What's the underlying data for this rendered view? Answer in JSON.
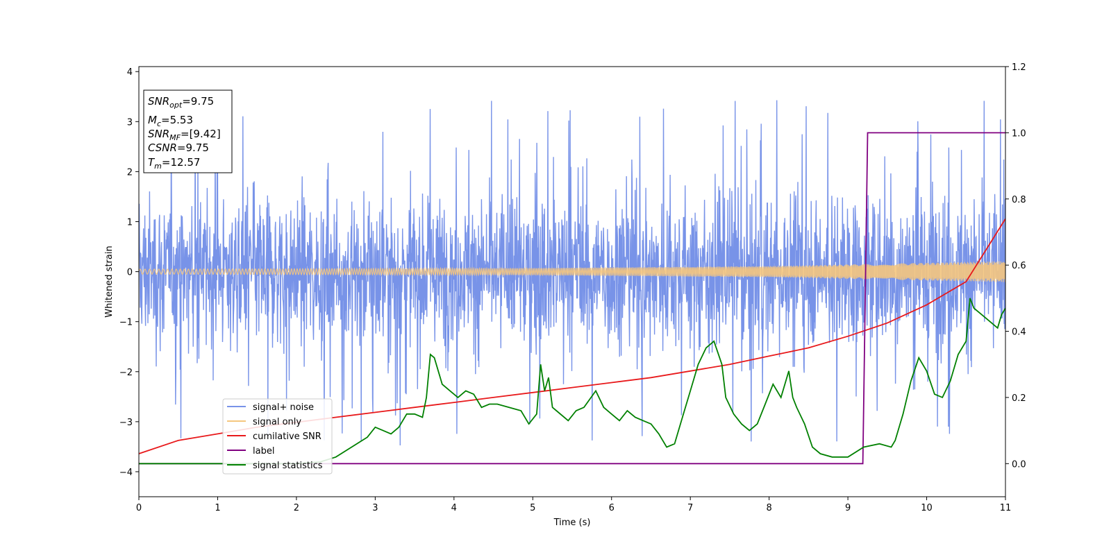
{
  "chart_data": {
    "type": "line",
    "title": "",
    "xlabel": "Time (s)",
    "ylabel": "Whitened strain",
    "y2label": "",
    "xlim": [
      0,
      11
    ],
    "ylim": [
      -4.5,
      4.1
    ],
    "y2lim": [
      -0.1,
      1.2
    ],
    "xticks": [
      "0",
      "1",
      "2",
      "3",
      "4",
      "5",
      "6",
      "7",
      "8",
      "9",
      "10",
      "11"
    ],
    "yticks": [
      "−4",
      "−3",
      "−2",
      "−1",
      "0",
      "1",
      "2",
      "3",
      "4"
    ],
    "y2ticks": [
      "0.0",
      "0.2",
      "0.4",
      "0.6",
      "0.8",
      "1.0",
      "1.2"
    ],
    "grid": false,
    "legend_position": "lower-left",
    "info_box": {
      "snr_opt": "=9.75",
      "mc": "=5.53",
      "snr_mf": "=[9.42]",
      "csnr": "=9.75",
      "tm": "=12.57"
    },
    "series": [
      {
        "name": "signal+ noise",
        "color": "#7893e8",
        "axis": "left",
        "description_level": "noise amplitude",
        "envelope": {
          "typical_min": -1.5,
          "typical_max": 1.4,
          "extreme_min": -3.8,
          "extreme_max": 3.67
        }
      },
      {
        "name": "signal only",
        "color": "#f5c77e",
        "axis": "left",
        "amplitude": {
          "x": [
            0,
            5,
            8,
            11
          ],
          "amp": [
            0.05,
            0.07,
            0.11,
            0.21
          ]
        }
      },
      {
        "name": "cumilative SNR",
        "color": "#e8191b",
        "axis": "right",
        "x": [
          0,
          0.5,
          1,
          1.5,
          2,
          2.5,
          3,
          3.5,
          4,
          4.5,
          5,
          5.5,
          6,
          6.5,
          7,
          7.5,
          8,
          8.5,
          9,
          9.5,
          10,
          10.5,
          11
        ],
        "y": [
          0.03,
          0.07,
          0.09,
          0.11,
          0.125,
          0.14,
          0.155,
          0.17,
          0.185,
          0.2,
          0.215,
          0.23,
          0.245,
          0.26,
          0.28,
          0.3,
          0.325,
          0.35,
          0.385,
          0.425,
          0.48,
          0.55,
          0.74
        ]
      },
      {
        "name": "label",
        "color": "#800080",
        "axis": "right",
        "x": [
          0,
          9.19,
          9.25,
          11
        ],
        "y": [
          0.0,
          0.0,
          1.0,
          1.0
        ]
      },
      {
        "name": "signal statistics",
        "color": "#008000",
        "axis": "right",
        "x": [
          0,
          2.0,
          2.3,
          2.5,
          2.7,
          2.9,
          3.0,
          3.1,
          3.2,
          3.3,
          3.4,
          3.5,
          3.6,
          3.65,
          3.7,
          3.75,
          3.85,
          3.95,
          4.05,
          4.15,
          4.25,
          4.35,
          4.45,
          4.55,
          4.7,
          4.85,
          4.95,
          5.05,
          5.1,
          5.15,
          5.2,
          5.25,
          5.3,
          5.45,
          5.55,
          5.65,
          5.8,
          5.9,
          6.0,
          6.1,
          6.2,
          6.3,
          6.4,
          6.5,
          6.6,
          6.7,
          6.8,
          6.9,
          7.0,
          7.1,
          7.2,
          7.3,
          7.4,
          7.45,
          7.55,
          7.65,
          7.75,
          7.85,
          7.95,
          8.05,
          8.15,
          8.25,
          8.3,
          8.35,
          8.45,
          8.55,
          8.65,
          8.8,
          9.0,
          9.2,
          9.4,
          9.55,
          9.6,
          9.7,
          9.8,
          9.9,
          10.0,
          10.1,
          10.2,
          10.3,
          10.4,
          10.5,
          10.55,
          10.6,
          10.7,
          10.8,
          10.9,
          10.95,
          11.0
        ],
        "y": [
          0.0,
          0.0,
          0.005,
          0.02,
          0.05,
          0.08,
          0.11,
          0.1,
          0.09,
          0.11,
          0.15,
          0.15,
          0.14,
          0.2,
          0.33,
          0.32,
          0.24,
          0.22,
          0.2,
          0.22,
          0.21,
          0.17,
          0.18,
          0.18,
          0.17,
          0.16,
          0.12,
          0.15,
          0.3,
          0.22,
          0.26,
          0.17,
          0.16,
          0.13,
          0.16,
          0.17,
          0.22,
          0.17,
          0.15,
          0.13,
          0.16,
          0.14,
          0.13,
          0.12,
          0.09,
          0.05,
          0.06,
          0.14,
          0.22,
          0.3,
          0.35,
          0.37,
          0.3,
          0.2,
          0.15,
          0.12,
          0.1,
          0.12,
          0.18,
          0.24,
          0.2,
          0.28,
          0.2,
          0.17,
          0.12,
          0.05,
          0.03,
          0.02,
          0.02,
          0.05,
          0.06,
          0.05,
          0.07,
          0.15,
          0.25,
          0.32,
          0.28,
          0.21,
          0.2,
          0.25,
          0.33,
          0.37,
          0.5,
          0.47,
          0.45,
          0.43,
          0.41,
          0.45,
          0.47
        ]
      }
    ]
  }
}
